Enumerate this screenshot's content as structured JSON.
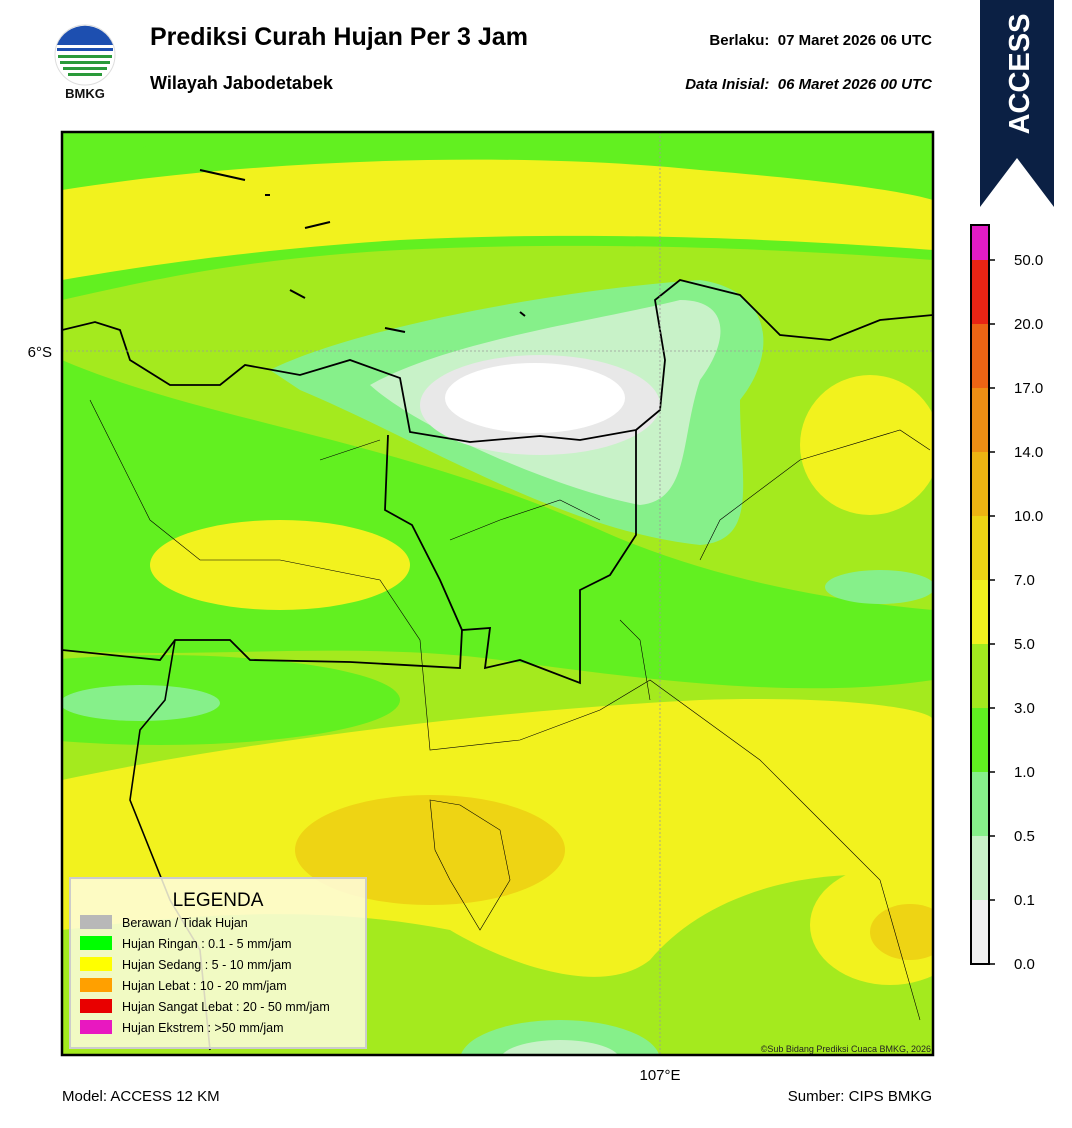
{
  "header": {
    "logo_text": "BMKG",
    "title": "Prediksi Curah Hujan Per 3 Jam",
    "subtitle": "Wilayah Jabodetabek",
    "valid": "Berlaku:  07 Maret 2026 06 UTC",
    "init": "Data Inisial:  06 Maret 2026 00 UTC",
    "badge": "ACCESS"
  },
  "map": {
    "lat_label": "6°S",
    "lon_label": "107°E",
    "copyright": "©Sub Bidang Prediksi Cuaca BMKG, 2026"
  },
  "colorbar": {
    "ticks": [
      "0.0",
      "0.1",
      "0.5",
      "1.0",
      "3.0",
      "5.0",
      "7.0",
      "10.0",
      "14.0",
      "17.0",
      "20.0",
      "50.0"
    ],
    "colors": [
      "#efefef",
      "#c8f2c8",
      "#86f08a",
      "#60f020",
      "#a2ea1e",
      "#f2f21e",
      "#eed414",
      "#eeb412",
      "#ee8e14",
      "#ec6414",
      "#e82414",
      "#e21cc4"
    ]
  },
  "legend": {
    "title": "LEGENDA",
    "items": [
      {
        "label": "Berawan / Tidak Hujan",
        "color": "#b8b8b8"
      },
      {
        "label": "Hujan Ringan : 0.1 - 5 mm/jam",
        "color": "#00ff00"
      },
      {
        "label": "Hujan Sedang : 5 - 10 mm/jam",
        "color": "#ffff00"
      },
      {
        "label": "Hujan Lebat : 10 - 20 mm/jam",
        "color": "#ffa000"
      },
      {
        "label": "Hujan Sangat Lebat : 20 - 50 mm/jam",
        "color": "#e80000"
      },
      {
        "label": "Hujan Ekstrem : >50 mm/jam",
        "color": "#e818c0"
      }
    ]
  },
  "footer": {
    "model": "Model: ACCESS 12 KM",
    "source": "Sumber: CIPS BMKG"
  }
}
